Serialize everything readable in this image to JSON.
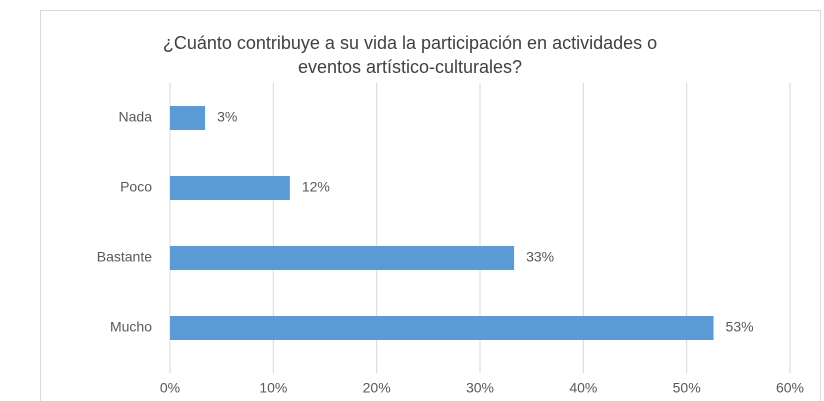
{
  "chart_data": {
    "type": "bar",
    "orientation": "horizontal",
    "title": "¿Cuánto contribuye a su vida la participación en actividades o eventos artístico-culturales?",
    "categories": [
      "Nada",
      "Poco",
      "Bastante",
      "Mucho"
    ],
    "values": [
      3.4,
      11.6,
      33.3,
      52.6
    ],
    "value_labels": [
      "3%",
      "12%",
      "33%",
      "53%"
    ],
    "color": "#5b9bd5",
    "xlim": [
      0,
      60
    ],
    "xticks": [
      {
        "value": 0,
        "label": "0%"
      },
      {
        "value": 10,
        "label": "10%"
      },
      {
        "value": 20,
        "label": "20%"
      },
      {
        "value": 30,
        "label": "30%"
      },
      {
        "value": 40,
        "label": "40%"
      },
      {
        "value": 50,
        "label": "50%"
      },
      {
        "value": 60,
        "label": "60%"
      }
    ],
    "grid": true
  }
}
